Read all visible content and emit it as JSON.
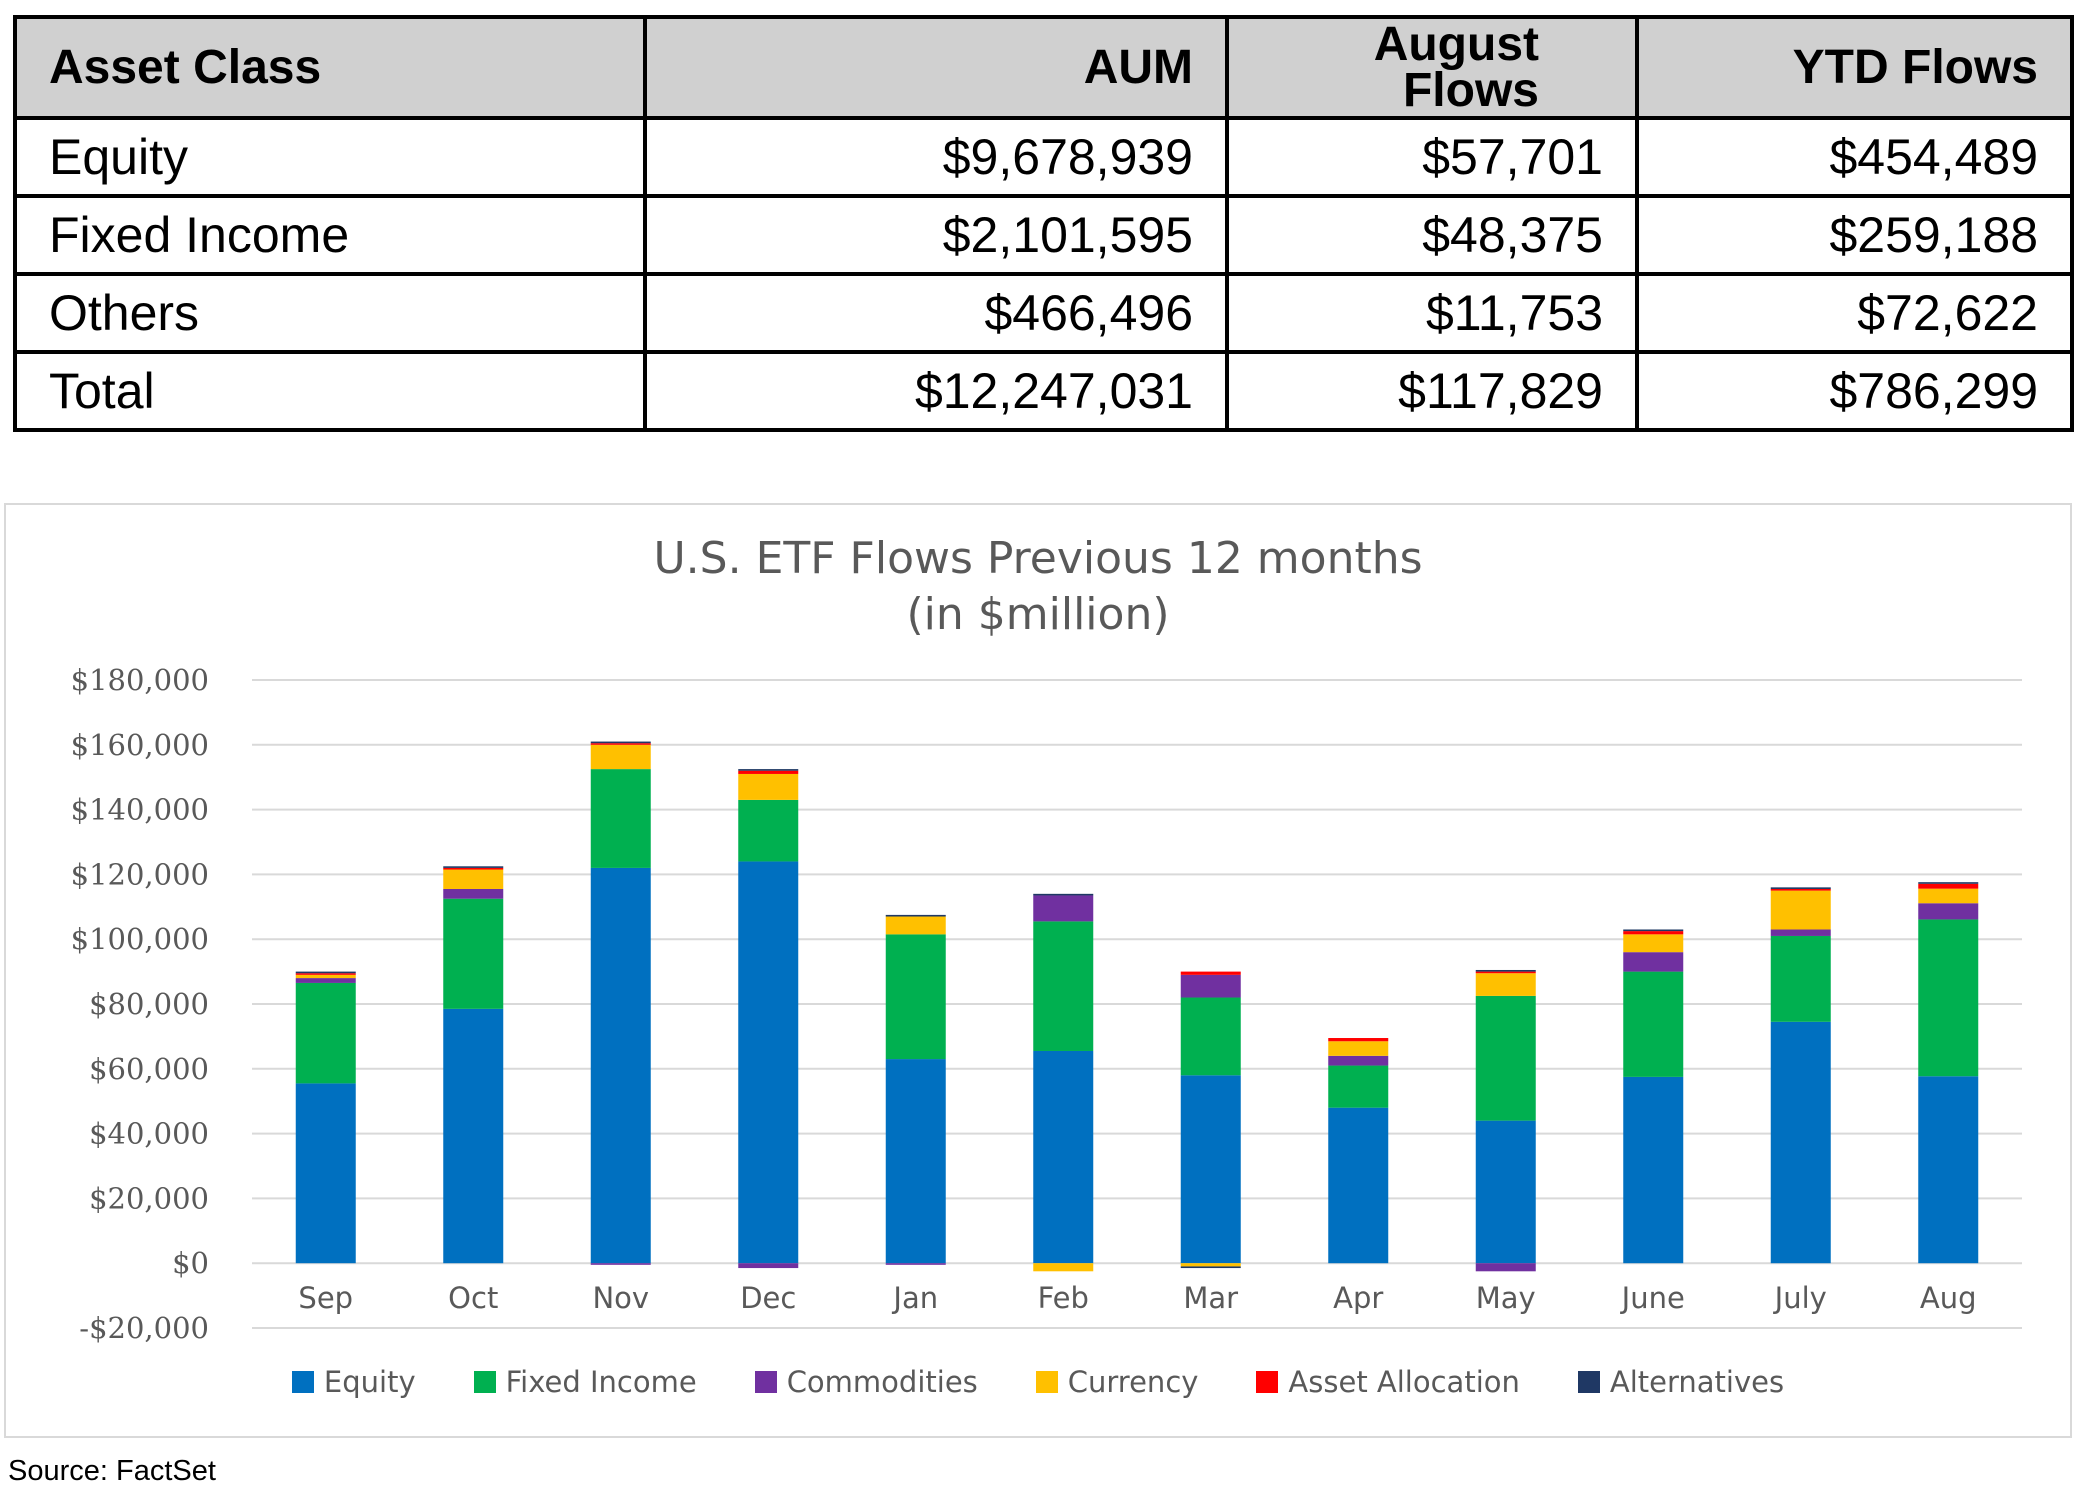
{
  "table": {
    "headers": [
      "Asset Class",
      "AUM",
      "August Flows",
      "YTD Flows"
    ],
    "rows": [
      [
        "Equity",
        "$9,678,939",
        "$57,701",
        "$454,489"
      ],
      [
        "Fixed Income",
        "$2,101,595",
        "$48,375",
        "$259,188"
      ],
      [
        "Others",
        "$466,496",
        "$11,753",
        "$72,622"
      ],
      [
        "Total",
        "$12,247,031",
        "$117,829",
        "$786,299"
      ]
    ]
  },
  "chart_data": {
    "type": "bar",
    "stacked": true,
    "title": "U.S. ETF Flows Previous 12 months",
    "subtitle": "(in $million)",
    "categories": [
      "Sep",
      "Oct",
      "Nov",
      "Dec",
      "Jan",
      "Feb",
      "Mar",
      "Apr",
      "May",
      "June",
      "July",
      "Aug"
    ],
    "ylim": [
      -20000,
      180000
    ],
    "yticks": [
      -20000,
      0,
      20000,
      40000,
      60000,
      80000,
      100000,
      120000,
      140000,
      160000,
      180000
    ],
    "ytick_labels": [
      "-$20,000",
      "$0",
      "$20,000",
      "$40,000",
      "$60,000",
      "$80,000",
      "$100,000",
      "$120,000",
      "$140,000",
      "$160,000",
      "$180,000"
    ],
    "grid": true,
    "legend_position": "bottom",
    "series": [
      {
        "name": "Equity",
        "color": "#0070C0",
        "values": [
          55500,
          78500,
          122000,
          124000,
          63000,
          65500,
          58000,
          48000,
          44000,
          57500,
          74500,
          57700
        ]
      },
      {
        "name": "Fixed Income",
        "color": "#00B050",
        "values": [
          31000,
          34000,
          30500,
          19000,
          38500,
          40000,
          24000,
          13000,
          38500,
          32500,
          26500,
          48400
        ]
      },
      {
        "name": "Commodities",
        "color": "#7030A0",
        "values": [
          1500,
          3000,
          -500,
          -1500,
          -500,
          8000,
          7000,
          3000,
          -2500,
          6000,
          2000,
          5000
        ]
      },
      {
        "name": "Currency",
        "color": "#FFC000",
        "values": [
          1000,
          6000,
          7500,
          8000,
          5500,
          -2500,
          -1000,
          4500,
          7000,
          5500,
          12000,
          4500
        ]
      },
      {
        "name": "Asset Allocation",
        "color": "#FF0000",
        "values": [
          500,
          500,
          500,
          1000,
          0,
          0,
          1000,
          1000,
          500,
          1000,
          500,
          1500
        ]
      },
      {
        "name": "Alternatives",
        "color": "#1F3864",
        "values": [
          500,
          500,
          500,
          500,
          500,
          500,
          -500,
          0,
          500,
          500,
          500,
          500
        ]
      }
    ]
  },
  "source": "Source: FactSet"
}
